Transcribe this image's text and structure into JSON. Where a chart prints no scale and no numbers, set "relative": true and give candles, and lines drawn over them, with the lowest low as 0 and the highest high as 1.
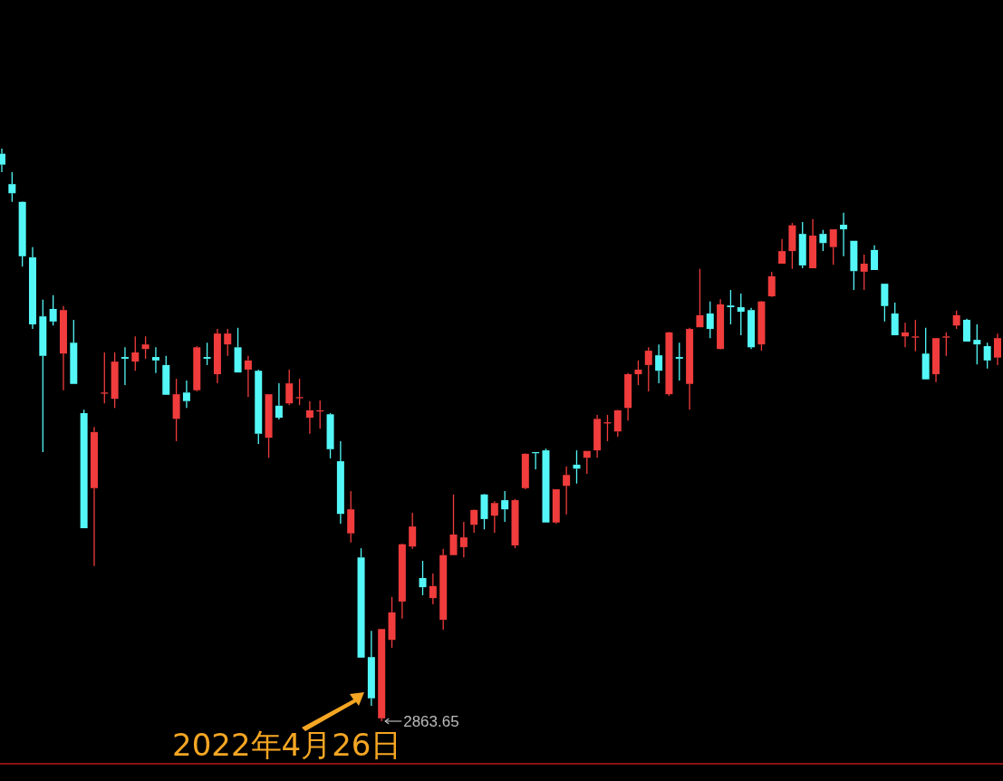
{
  "chart_data": {
    "type": "candlestick",
    "relative": true,
    "categories": [
      null,
      null,
      null,
      null,
      null,
      null,
      null,
      null,
      null,
      null,
      null,
      null,
      null,
      null,
      null,
      null,
      null,
      null,
      null,
      null,
      null,
      null,
      null,
      null,
      null,
      null,
      null,
      null,
      null,
      null,
      null,
      null,
      null,
      null,
      null,
      null,
      null,
      null,
      null,
      null,
      null,
      null,
      null,
      null,
      null,
      null,
      null,
      null,
      null,
      null,
      null,
      null,
      null,
      null,
      null,
      null,
      null,
      null,
      null,
      null,
      null,
      null,
      null,
      null,
      null,
      null,
      null,
      null,
      null,
      null,
      null,
      null,
      null,
      null,
      null,
      null,
      null,
      null,
      null,
      null,
      null,
      null,
      null,
      null,
      null,
      null,
      null,
      null,
      null,
      null,
      null,
      null,
      null,
      null,
      null,
      null,
      null,
      null
    ],
    "ohlc": [
      [
        0.991,
        1,
        0.959,
        0.972
      ],
      [
        0.938,
        0.959,
        0.907,
        0.922
      ],
      [
        0.907,
        0.908,
        0.794,
        0.812
      ],
      [
        0.81,
        0.828,
        0.685,
        0.693
      ],
      [
        0.707,
        0.736,
        0.47,
        0.638
      ],
      [
        0.72,
        0.744,
        0.691,
        0.698
      ],
      [
        0.642,
        0.725,
        0.578,
        0.718
      ],
      [
        0.661,
        0.701,
        0.589,
        0.589
      ],
      [
        0.538,
        0.544,
        0.337,
        0.337
      ],
      [
        0.407,
        0.514,
        0.271,
        0.505
      ],
      [
        0.573,
        0.644,
        0.555,
        0.574
      ],
      [
        0.563,
        0.644,
        0.547,
        0.628
      ],
      [
        0.636,
        0.653,
        0.587,
        0.633
      ],
      [
        0.628,
        0.672,
        0.612,
        0.644
      ],
      [
        0.65,
        0.672,
        0.633,
        0.658
      ],
      [
        0.636,
        0.653,
        0.608,
        0.63
      ],
      [
        0.622,
        0.638,
        0.57,
        0.57
      ],
      [
        0.528,
        0.598,
        0.489,
        0.571
      ],
      [
        0.574,
        0.595,
        0.547,
        0.559
      ],
      [
        0.578,
        0.655,
        0.576,
        0.653
      ],
      [
        0.636,
        0.661,
        0.622,
        0.633
      ],
      [
        0.606,
        0.685,
        0.59,
        0.677
      ],
      [
        0.658,
        0.685,
        0.638,
        0.677
      ],
      [
        0.653,
        0.687,
        0.609,
        0.609
      ],
      [
        0.614,
        0.638,
        0.566,
        0.63
      ],
      [
        0.612,
        0.614,
        0.484,
        0.502
      ],
      [
        0.495,
        0.571,
        0.46,
        0.571
      ],
      [
        0.551,
        0.59,
        0.527,
        0.53
      ],
      [
        0.555,
        0.614,
        0.552,
        0.59
      ],
      [
        0.565,
        0.598,
        0.552,
        0.566
      ],
      [
        0.53,
        0.559,
        0.502,
        0.543
      ],
      [
        0.541,
        0.56,
        0.511,
        0.543
      ],
      [
        0.536,
        0.538,
        0.459,
        0.475
      ],
      [
        0.454,
        0.489,
        0.345,
        0.362
      ],
      [
        0.328,
        0.402,
        0.312,
        0.37
      ],
      [
        0.286,
        0.302,
        0.111,
        0.111
      ],
      [
        0.112,
        0.158,
        0.027,
        0.04
      ],
      [
        0.005,
        0.161,
        0,
        0.161
      ],
      [
        0.142,
        0.217,
        0.128,
        0.19
      ],
      [
        0.209,
        0.31,
        0.179,
        0.309
      ],
      [
        0.305,
        0.364,
        0.301,
        0.34
      ],
      [
        0.25,
        0.28,
        0.22,
        0.234
      ],
      [
        0.215,
        0.258,
        0.204,
        0.236
      ],
      [
        0.177,
        0.301,
        0.16,
        0.29
      ],
      [
        0.29,
        0.396,
        0.29,
        0.326
      ],
      [
        0.304,
        0.348,
        0.286,
        0.321
      ],
      [
        0.343,
        0.37,
        0.329,
        0.369
      ],
      [
        0.396,
        0.397,
        0.335,
        0.353
      ],
      [
        0.359,
        0.384,
        0.329,
        0.381
      ],
      [
        0.386,
        0.402,
        0.348,
        0.37
      ],
      [
        0.307,
        0.388,
        0.302,
        0.386
      ],
      [
        0.407,
        0.468,
        0.405,
        0.467
      ],
      [
        0.47,
        0.47,
        0.44,
        0.468
      ],
      [
        0.473,
        0.476,
        0.347,
        0.347
      ],
      [
        0.347,
        0.405,
        0.345,
        0.405
      ],
      [
        0.411,
        0.445,
        0.361,
        0.43
      ],
      [
        0.448,
        0.473,
        0.415,
        0.441
      ],
      [
        0.46,
        0.472,
        0.432,
        0.472
      ],
      [
        0.473,
        0.535,
        0.46,
        0.528
      ],
      [
        0.521,
        0.535,
        0.489,
        0.522
      ],
      [
        0.506,
        0.544,
        0.497,
        0.543
      ],
      [
        0.547,
        0.608,
        0.525,
        0.606
      ],
      [
        0.606,
        0.63,
        0.587,
        0.614
      ],
      [
        0.622,
        0.653,
        0.576,
        0.647
      ],
      [
        0.639,
        0.658,
        0.59,
        0.612
      ],
      [
        0.571,
        0.68,
        0.568,
        0.679
      ],
      [
        0.636,
        0.661,
        0.595,
        0.633
      ],
      [
        0.589,
        0.687,
        0.544,
        0.685
      ],
      [
        0.688,
        0.79,
        0.688,
        0.709
      ],
      [
        0.712,
        0.733,
        0.669,
        0.685
      ],
      [
        0.65,
        0.737,
        0.649,
        0.728
      ],
      [
        0.726,
        0.753,
        0.693,
        0.723
      ],
      [
        0.723,
        0.747,
        0.674,
        0.715
      ],
      [
        0.718,
        0.722,
        0.65,
        0.653
      ],
      [
        0.658,
        0.734,
        0.647,
        0.733
      ],
      [
        0.742,
        0.785,
        0.741,
        0.777
      ],
      [
        0.799,
        0.842,
        0.799,
        0.821
      ],
      [
        0.821,
        0.87,
        0.79,
        0.866
      ],
      [
        0.851,
        0.872,
        0.791,
        0.796
      ],
      [
        0.791,
        0.877,
        0.791,
        0.848
      ],
      [
        0.851,
        0.858,
        0.821,
        0.835
      ],
      [
        0.828,
        0.859,
        0.797,
        0.859
      ],
      [
        0.867,
        0.888,
        0.812,
        0.859
      ],
      [
        0.839,
        0.839,
        0.753,
        0.786
      ],
      [
        0.785,
        0.815,
        0.753,
        0.799
      ],
      [
        0.823,
        0.831,
        0.788,
        0.788
      ],
      [
        0.764,
        0.764,
        0.698,
        0.725
      ],
      [
        0.712,
        0.731,
        0.674,
        0.674
      ],
      [
        0.672,
        0.696,
        0.653,
        0.679
      ],
      [
        0.671,
        0.701,
        0.646,
        0.672
      ],
      [
        0.642,
        0.687,
        0.597,
        0.597
      ],
      [
        0.606,
        0.669,
        0.592,
        0.669
      ],
      [
        0.671,
        0.679,
        0.638,
        0.672
      ],
      [
        0.691,
        0.717,
        0.685,
        0.709
      ],
      [
        0.701,
        0.703,
        0.663,
        0.663
      ],
      [
        0.666,
        0.693,
        0.623,
        0.658
      ],
      [
        0.655,
        0.661,
        0.616,
        0.63
      ],
      [
        0.635,
        0.677,
        0.622,
        0.669
      ]
    ],
    "colors": [
      "#54f7f7",
      "#54f7f7",
      "#54f7f7",
      "#54f7f7",
      "#54f7f7",
      "#54f7f7",
      "#f03c3c",
      "#54f7f7",
      "#54f7f7",
      "#f03c3c",
      "#f03c3c",
      "#f03c3c",
      "#54f7f7",
      "#f03c3c",
      "#f03c3c",
      "#54f7f7",
      "#54f7f7",
      "#f03c3c",
      "#54f7f7",
      "#f03c3c",
      "#54f7f7",
      "#f03c3c",
      "#f03c3c",
      "#54f7f7",
      "#f03c3c",
      "#54f7f7",
      "#f03c3c",
      "#54f7f7",
      "#f03c3c",
      "#f03c3c",
      "#f03c3c",
      "#f03c3c",
      "#54f7f7",
      "#54f7f7",
      "#f03c3c",
      "#54f7f7",
      "#54f7f7",
      "#f03c3c",
      "#f03c3c",
      "#f03c3c",
      "#f03c3c",
      "#54f7f7",
      "#f03c3c",
      "#f03c3c",
      "#f03c3c",
      "#f03c3c",
      "#f03c3c",
      "#54f7f7",
      "#f03c3c",
      "#54f7f7",
      "#f03c3c",
      "#f03c3c",
      "#54f7f7",
      "#54f7f7",
      "#f03c3c",
      "#f03c3c",
      "#54f7f7",
      "#f03c3c",
      "#f03c3c",
      "#f03c3c",
      "#f03c3c",
      "#f03c3c",
      "#f03c3c",
      "#f03c3c",
      "#54f7f7",
      "#f03c3c",
      "#54f7f7",
      "#f03c3c",
      "#f03c3c",
      "#54f7f7",
      "#f03c3c",
      "#54f7f7",
      "#54f7f7",
      "#54f7f7",
      "#f03c3c",
      "#f03c3c",
      "#f03c3c",
      "#f03c3c",
      "#54f7f7",
      "#f03c3c",
      "#54f7f7",
      "#f03c3c",
      "#54f7f7",
      "#54f7f7",
      "#f03c3c",
      "#54f7f7",
      "#54f7f7",
      "#54f7f7",
      "#f03c3c",
      "#f03c3c",
      "#54f7f7",
      "#f03c3c",
      "#f03c3c",
      "#f03c3c",
      "#54f7f7",
      "#54f7f7",
      "#54f7f7",
      "#f03c3c"
    ],
    "annotations": [
      "2022年4月26日",
      "2863.65"
    ]
  }
}
